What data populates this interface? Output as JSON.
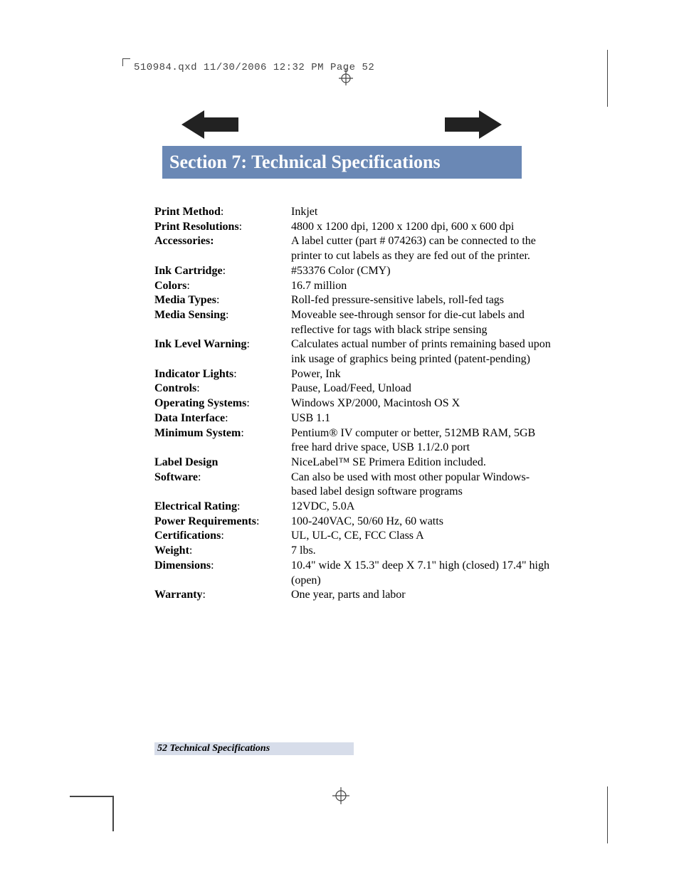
{
  "running_head": "510984.qxd  11/30/2006  12:32 PM  Page 52",
  "banner_title": "Section 7:  Technical Specifications",
  "colors": {
    "banner_bg": "#6a88b5",
    "footer_bg": "#d7ddea",
    "arrow_fill": "#222222",
    "crop_color": "#444444"
  },
  "specs": [
    {
      "label": "Print Method",
      "colon": ":",
      "value": "Inkjet"
    },
    {
      "label": "Print Resolutions",
      "colon": ":",
      "value": "4800 x 1200 dpi, 1200 x 1200 dpi, 600 x 600 dpi"
    },
    {
      "label": "Accessories:",
      "colon": "",
      "value": "A label cutter (part # 074263) can be connected to the printer to cut labels as they are fed out of the printer."
    },
    {
      "label": "Ink Cartridge",
      "colon": ":",
      "value": "#53376 Color (CMY)"
    },
    {
      "label": "Colors",
      "colon": ":",
      "value": "16.7 million"
    },
    {
      "label": "Media Types",
      "colon": ":",
      "value": "Roll-fed pressure-sensitive labels, roll-fed tags"
    },
    {
      "label": "Media Sensing",
      "colon": ":",
      "value": "Moveable see-through sensor for die-cut labels and reflective for tags with black stripe sensing"
    },
    {
      "label": "Ink Level Warning",
      "colon": ":",
      "value": "Calculates actual number of prints remaining based upon ink usage of graphics being printed (patent-pending)"
    },
    {
      "label": "Indicator Lights",
      "colon": ":",
      "value": "Power, Ink"
    },
    {
      "label": "Controls",
      "colon": ":",
      "value": "Pause, Load/Feed, Unload"
    },
    {
      "label": "Operating Systems",
      "colon": ":",
      "value": "Windows XP/2000, Macintosh OS X"
    },
    {
      "label": "Data Interface",
      "colon": ":",
      "value": "USB 1.1"
    },
    {
      "label": "Minimum System",
      "colon": ":",
      "value": "Pentium® IV computer or better, 512MB RAM, 5GB free hard drive space, USB 1.1/2.0 port"
    },
    {
      "label": "Label Design",
      "colon": "",
      "value": "NiceLabel™ SE Primera Edition included."
    },
    {
      "label": "Software",
      "colon": ":",
      "value": "Can also be used with most other popular Windows-based label design software programs"
    },
    {
      "label": "Electrical Rating",
      "colon": ":",
      "value": "12VDC, 5.0A"
    },
    {
      "label": "Power Requirements",
      "colon": ":",
      "value": "100-240VAC, 50/60 Hz, 60 watts"
    },
    {
      "label": "Certifications",
      "colon": ":",
      "value": "UL, UL-C, CE, FCC Class A"
    },
    {
      "label": "Weight",
      "colon": ":",
      "value": "7 lbs."
    },
    {
      "label": "Dimensions",
      "colon": ":",
      "value": "10.4\" wide X 15.3\" deep X 7.1\" high (closed) 17.4\" high (open)"
    },
    {
      "label": "Warranty",
      "colon": ":",
      "value": "One year, parts and labor"
    }
  ],
  "footer": "52  Technical Specifications"
}
